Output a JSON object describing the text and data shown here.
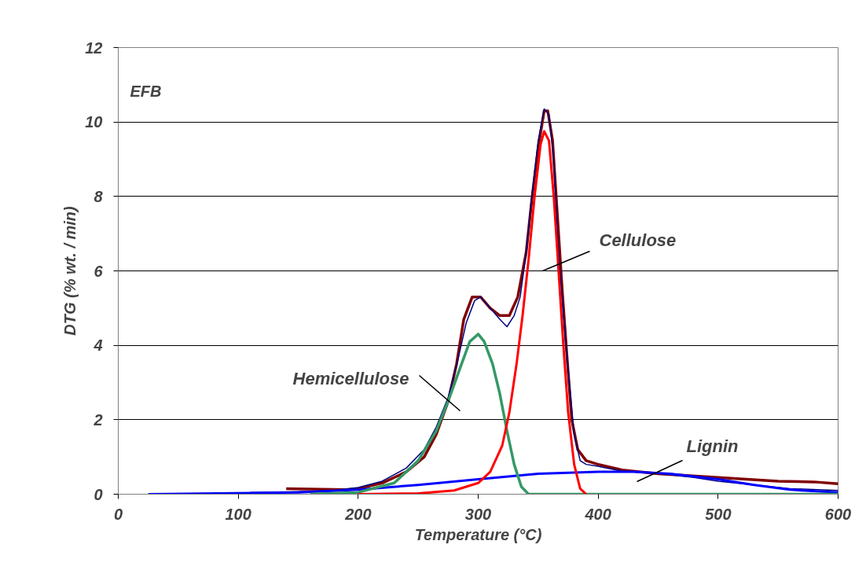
{
  "chart_data": {
    "type": "line",
    "xlabel": "Temperature (°C)",
    "ylabel": "DTG (% wt. / min)",
    "xlim": [
      0,
      600
    ],
    "ylim": [
      0,
      12
    ],
    "xticks": [
      0,
      100,
      200,
      300,
      400,
      500,
      600
    ],
    "yticks": [
      0,
      2,
      4,
      6,
      8,
      10,
      12
    ],
    "grid": "y",
    "marker": "none",
    "line_style": "solid",
    "annotations": [
      "EFB",
      "Hemicellulose",
      "Cellulose",
      "Lignin"
    ],
    "series": [
      {
        "color": "#800000",
        "x": [
          140,
          190,
          200,
          220,
          240,
          255,
          265,
          275,
          282,
          288,
          295,
          302,
          310,
          318,
          326,
          333,
          340,
          345,
          350,
          355,
          358,
          362,
          366,
          370,
          374,
          378,
          383,
          390,
          400,
          420,
          450,
          500,
          550,
          580,
          600
        ],
        "values": [
          0.15,
          0.12,
          0.15,
          0.3,
          0.6,
          1.0,
          1.6,
          2.5,
          3.5,
          4.7,
          5.3,
          5.3,
          5.0,
          4.8,
          4.8,
          5.3,
          6.5,
          8.0,
          9.3,
          10.3,
          10.3,
          9.5,
          7.5,
          5.5,
          3.7,
          2.0,
          1.2,
          0.9,
          0.8,
          0.65,
          0.55,
          0.45,
          0.35,
          0.33,
          0.28
        ]
      },
      {
        "color": "#000080",
        "x": [
          110,
          150,
          180,
          200,
          220,
          240,
          255,
          265,
          275,
          283,
          290,
          297,
          302,
          310,
          318,
          324,
          330,
          335,
          340,
          344,
          350,
          355,
          359,
          363,
          367,
          372,
          376,
          380,
          385,
          390,
          400,
          420,
          450,
          480,
          500,
          530,
          560,
          600
        ],
        "values": [
          0.05,
          0.07,
          0.1,
          0.18,
          0.35,
          0.7,
          1.2,
          1.8,
          2.6,
          3.6,
          4.6,
          5.2,
          5.3,
          5.0,
          4.7,
          4.5,
          4.8,
          5.3,
          6.5,
          7.8,
          9.5,
          10.35,
          10.2,
          9.0,
          6.5,
          4.5,
          3.0,
          1.6,
          0.9,
          0.8,
          0.75,
          0.62,
          0.56,
          0.45,
          0.35,
          0.25,
          0.15,
          0.1
        ]
      },
      {
        "color": "#0000ff",
        "x": [
          25,
          110,
          150,
          200,
          250,
          300,
          350,
          400,
          430,
          460,
          500,
          530,
          560,
          600
        ],
        "values": [
          0,
          0.03,
          0.05,
          0.12,
          0.25,
          0.4,
          0.55,
          0.6,
          0.6,
          0.55,
          0.4,
          0.25,
          0.12,
          0.05
        ]
      },
      {
        "color": "#339966",
        "x": [
          160,
          200,
          230,
          250,
          265,
          275,
          285,
          293,
          300,
          305,
          312,
          318,
          324,
          330,
          336,
          342,
          600
        ],
        "values": [
          0,
          0.05,
          0.3,
          0.9,
          1.7,
          2.5,
          3.4,
          4.1,
          4.3,
          4.1,
          3.5,
          2.7,
          1.7,
          0.8,
          0.2,
          0,
          0
        ]
      },
      {
        "color": "#ff0000",
        "x": [
          200,
          250,
          280,
          300,
          310,
          320,
          326,
          332,
          337,
          342,
          347,
          352,
          355,
          359,
          363,
          367,
          371,
          375,
          380,
          385,
          390
        ],
        "values": [
          0,
          0.02,
          0.1,
          0.3,
          0.6,
          1.3,
          2.2,
          3.5,
          4.8,
          6.3,
          8.0,
          9.4,
          9.75,
          9.5,
          8.0,
          6.0,
          4.0,
          2.2,
          0.8,
          0.15,
          0
        ]
      }
    ]
  }
}
